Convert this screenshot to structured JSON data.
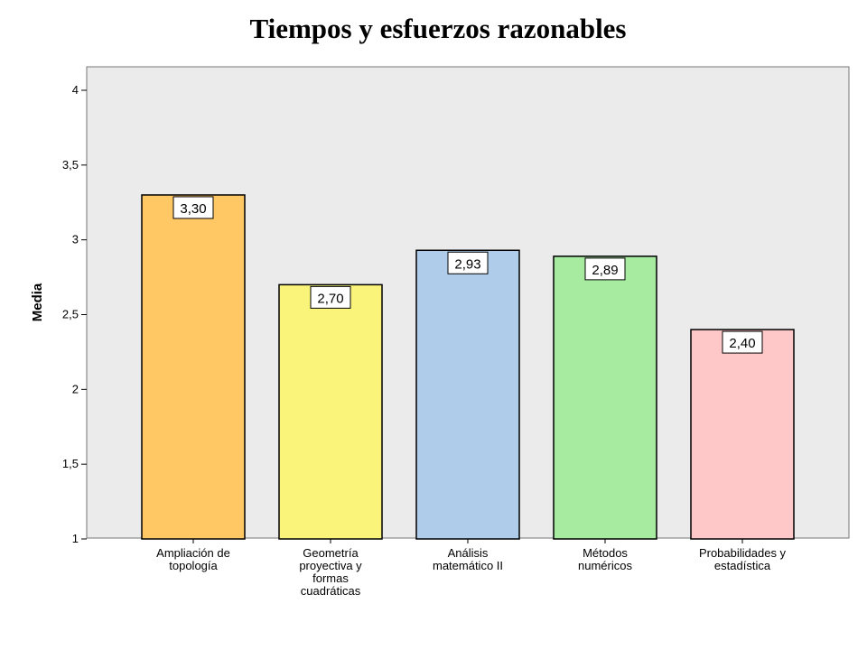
{
  "chart_data": {
    "type": "bar",
    "title": "Tiempos y esfuerzos razonables",
    "xlabel": "",
    "ylabel": "Media",
    "ylim": [
      1,
      4
    ],
    "yticks": [
      "1",
      "1,5",
      "2",
      "2,5",
      "3",
      "3,5",
      "4"
    ],
    "categories": [
      [
        "Ampliación de",
        "topología"
      ],
      [
        "Geometría",
        "proyectiva y",
        "formas",
        "cuadráticas"
      ],
      [
        "Análisis",
        "matemático II"
      ],
      [
        "Métodos",
        "numéricos"
      ],
      [
        "Probabilidades y",
        "estadística"
      ]
    ],
    "values": [
      3.3,
      2.7,
      2.93,
      2.89,
      2.4
    ],
    "value_labels": [
      "3,30",
      "2,70",
      "2,93",
      "2,89",
      "2,40"
    ],
    "colors": [
      "#FFC864",
      "#FAF57A",
      "#AFCDEB",
      "#A6EBA0",
      "#FFC8C8"
    ],
    "plot_background": "#EBEBEB",
    "grid": false,
    "legend": "none"
  }
}
